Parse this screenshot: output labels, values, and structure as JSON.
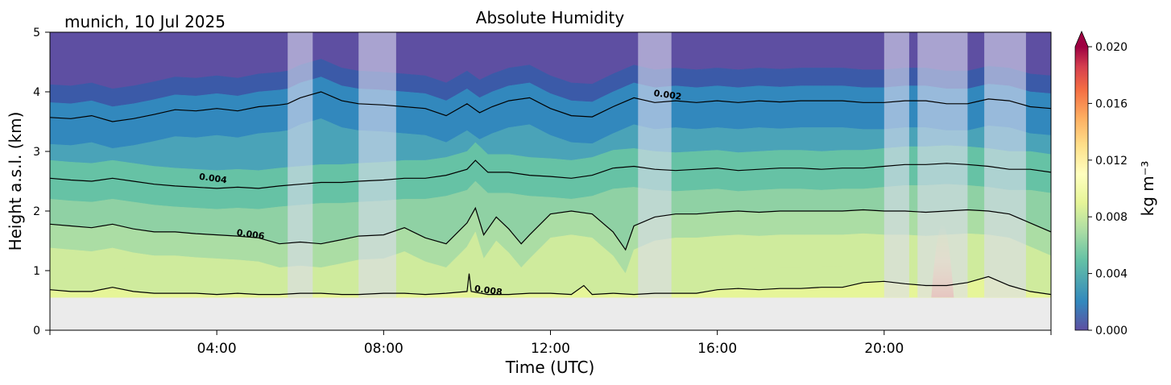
{
  "header": {
    "location_date": "munich, 10 Jul 2025",
    "title": "Absolute Humidity"
  },
  "chart_data": {
    "type": "heatmap",
    "title": "Absolute Humidity",
    "xlabel": "Time (UTC)",
    "ylabel": "Height a.s.l. (km)",
    "xlim": [
      0,
      24
    ],
    "ylim": [
      0,
      5
    ],
    "x_ticks": [
      {
        "value": 4,
        "label": "04:00"
      },
      {
        "value": 8,
        "label": "08:00"
      },
      {
        "value": 12,
        "label": "12:00"
      },
      {
        "value": 16,
        "label": "16:00"
      },
      {
        "value": 20,
        "label": "20:00"
      }
    ],
    "y_ticks": [
      {
        "value": 0,
        "label": "0"
      },
      {
        "value": 1,
        "label": "1"
      },
      {
        "value": 2,
        "label": "2"
      },
      {
        "value": 3,
        "label": "3"
      },
      {
        "value": 4,
        "label": "4"
      },
      {
        "value": 5,
        "label": "5"
      }
    ],
    "data_bottom_km": 0.55,
    "colorbar": {
      "label": "kg m⁻³",
      "range": [
        0,
        0.02
      ],
      "extend": "max",
      "ticks": [
        {
          "value": 0.0,
          "label": "0.000"
        },
        {
          "value": 0.004,
          "label": "0.004"
        },
        {
          "value": 0.008,
          "label": "0.008"
        },
        {
          "value": 0.012,
          "label": "0.012"
        },
        {
          "value": 0.016,
          "label": "0.016"
        },
        {
          "value": 0.02,
          "label": "0.020"
        }
      ],
      "colormap": "Spectral_r"
    },
    "contours": [
      {
        "level": 0.002,
        "label": "0.002",
        "label_at": [
          14.8,
          3.9
        ],
        "points": [
          [
            0,
            3.57
          ],
          [
            0.5,
            3.55
          ],
          [
            1,
            3.6
          ],
          [
            1.5,
            3.5
          ],
          [
            2,
            3.55
          ],
          [
            2.5,
            3.62
          ],
          [
            3,
            3.7
          ],
          [
            3.5,
            3.68
          ],
          [
            4,
            3.72
          ],
          [
            4.5,
            3.68
          ],
          [
            5,
            3.75
          ],
          [
            5.5,
            3.78
          ],
          [
            5.7,
            3.8
          ],
          [
            6,
            3.9
          ],
          [
            6.5,
            4.0
          ],
          [
            7,
            3.85
          ],
          [
            7.4,
            3.8
          ],
          [
            8,
            3.78
          ],
          [
            8.5,
            3.75
          ],
          [
            9,
            3.72
          ],
          [
            9.5,
            3.6
          ],
          [
            10,
            3.8
          ],
          [
            10.3,
            3.65
          ],
          [
            10.6,
            3.75
          ],
          [
            11,
            3.85
          ],
          [
            11.5,
            3.9
          ],
          [
            12,
            3.72
          ],
          [
            12.5,
            3.6
          ],
          [
            13,
            3.58
          ],
          [
            13.5,
            3.75
          ],
          [
            14,
            3.9
          ],
          [
            14.5,
            3.82
          ],
          [
            15,
            3.85
          ],
          [
            15.5,
            3.82
          ],
          [
            16,
            3.85
          ],
          [
            16.5,
            3.82
          ],
          [
            17,
            3.85
          ],
          [
            17.5,
            3.83
          ],
          [
            18,
            3.85
          ],
          [
            18.5,
            3.85
          ],
          [
            19,
            3.85
          ],
          [
            19.5,
            3.82
          ],
          [
            20,
            3.82
          ],
          [
            20.5,
            3.85
          ],
          [
            21,
            3.85
          ],
          [
            21.5,
            3.8
          ],
          [
            22,
            3.8
          ],
          [
            22.5,
            3.88
          ],
          [
            23,
            3.85
          ],
          [
            23.5,
            3.75
          ],
          [
            24,
            3.72
          ]
        ]
      },
      {
        "level": 0.004,
        "label": "0.004",
        "label_at": [
          3.9,
          2.5
        ],
        "points": [
          [
            0,
            2.55
          ],
          [
            0.5,
            2.52
          ],
          [
            1,
            2.5
          ],
          [
            1.5,
            2.55
          ],
          [
            2,
            2.5
          ],
          [
            2.5,
            2.45
          ],
          [
            3,
            2.42
          ],
          [
            3.5,
            2.4
          ],
          [
            4,
            2.38
          ],
          [
            4.5,
            2.4
          ],
          [
            5,
            2.38
          ],
          [
            5.5,
            2.42
          ],
          [
            6,
            2.45
          ],
          [
            6.5,
            2.48
          ],
          [
            7,
            2.48
          ],
          [
            7.4,
            2.5
          ],
          [
            8,
            2.52
          ],
          [
            8.5,
            2.55
          ],
          [
            9,
            2.55
          ],
          [
            9.5,
            2.6
          ],
          [
            10,
            2.7
          ],
          [
            10.2,
            2.85
          ],
          [
            10.5,
            2.65
          ],
          [
            11,
            2.65
          ],
          [
            11.5,
            2.6
          ],
          [
            12,
            2.58
          ],
          [
            12.5,
            2.55
          ],
          [
            13,
            2.6
          ],
          [
            13.5,
            2.72
          ],
          [
            14,
            2.75
          ],
          [
            14.5,
            2.7
          ],
          [
            15,
            2.68
          ],
          [
            15.5,
            2.7
          ],
          [
            16,
            2.72
          ],
          [
            16.5,
            2.68
          ],
          [
            17,
            2.7
          ],
          [
            17.5,
            2.72
          ],
          [
            18,
            2.72
          ],
          [
            18.5,
            2.7
          ],
          [
            19,
            2.72
          ],
          [
            19.5,
            2.72
          ],
          [
            20,
            2.75
          ],
          [
            20.5,
            2.78
          ],
          [
            21,
            2.78
          ],
          [
            21.5,
            2.8
          ],
          [
            22,
            2.78
          ],
          [
            22.5,
            2.75
          ],
          [
            23,
            2.7
          ],
          [
            23.5,
            2.7
          ],
          [
            24,
            2.65
          ]
        ]
      },
      {
        "level": 0.006,
        "label": "0.006",
        "label_at": [
          4.8,
          1.56
        ],
        "points": [
          [
            0,
            1.78
          ],
          [
            0.5,
            1.75
          ],
          [
            1,
            1.72
          ],
          [
            1.5,
            1.78
          ],
          [
            2,
            1.7
          ],
          [
            2.5,
            1.65
          ],
          [
            3,
            1.65
          ],
          [
            3.5,
            1.62
          ],
          [
            4,
            1.6
          ],
          [
            4.5,
            1.58
          ],
          [
            5,
            1.55
          ],
          [
            5.5,
            1.45
          ],
          [
            6,
            1.48
          ],
          [
            6.5,
            1.45
          ],
          [
            7,
            1.52
          ],
          [
            7.4,
            1.58
          ],
          [
            8,
            1.6
          ],
          [
            8.5,
            1.72
          ],
          [
            9,
            1.55
          ],
          [
            9.5,
            1.45
          ],
          [
            10,
            1.8
          ],
          [
            10.2,
            2.05
          ],
          [
            10.4,
            1.6
          ],
          [
            10.7,
            1.9
          ],
          [
            11,
            1.7
          ],
          [
            11.3,
            1.45
          ],
          [
            11.5,
            1.6
          ],
          [
            12,
            1.95
          ],
          [
            12.5,
            2.0
          ],
          [
            13,
            1.95
          ],
          [
            13.5,
            1.65
          ],
          [
            13.8,
            1.35
          ],
          [
            14,
            1.75
          ],
          [
            14.5,
            1.9
          ],
          [
            15,
            1.95
          ],
          [
            15.5,
            1.95
          ],
          [
            16,
            1.98
          ],
          [
            16.5,
            2.0
          ],
          [
            17,
            1.98
          ],
          [
            17.5,
            2.0
          ],
          [
            18,
            2.0
          ],
          [
            18.5,
            2.0
          ],
          [
            19,
            2.0
          ],
          [
            19.5,
            2.02
          ],
          [
            20,
            2.0
          ],
          [
            20.5,
            2.0
          ],
          [
            21,
            1.98
          ],
          [
            21.5,
            2.0
          ],
          [
            22,
            2.02
          ],
          [
            22.5,
            2.0
          ],
          [
            23,
            1.95
          ],
          [
            23.5,
            1.8
          ],
          [
            24,
            1.65
          ]
        ]
      },
      {
        "level": 0.008,
        "label": "0.008",
        "label_at": [
          10.5,
          0.62
        ],
        "points": [
          [
            0,
            0.68
          ],
          [
            0.5,
            0.65
          ],
          [
            1,
            0.65
          ],
          [
            1.5,
            0.72
          ],
          [
            2,
            0.65
          ],
          [
            2.5,
            0.62
          ],
          [
            3,
            0.62
          ],
          [
            3.5,
            0.62
          ],
          [
            4,
            0.6
          ],
          [
            4.5,
            0.62
          ],
          [
            5,
            0.6
          ],
          [
            5.5,
            0.6
          ],
          [
            6,
            0.62
          ],
          [
            6.5,
            0.62
          ],
          [
            7,
            0.6
          ],
          [
            7.4,
            0.6
          ],
          [
            8,
            0.62
          ],
          [
            8.5,
            0.62
          ],
          [
            9,
            0.6
          ],
          [
            9.5,
            0.62
          ],
          [
            10,
            0.65
          ],
          [
            10.05,
            0.95
          ],
          [
            10.1,
            0.65
          ],
          [
            10.5,
            0.6
          ],
          [
            11,
            0.6
          ],
          [
            11.5,
            0.62
          ],
          [
            12,
            0.62
          ],
          [
            12.5,
            0.6
          ],
          [
            12.8,
            0.75
          ],
          [
            13,
            0.6
          ],
          [
            13.5,
            0.62
          ],
          [
            14,
            0.6
          ],
          [
            14.5,
            0.62
          ],
          [
            15,
            0.62
          ],
          [
            15.5,
            0.62
          ],
          [
            16,
            0.68
          ],
          [
            16.5,
            0.7
          ],
          [
            17,
            0.68
          ],
          [
            17.5,
            0.7
          ],
          [
            18,
            0.7
          ],
          [
            18.5,
            0.72
          ],
          [
            19,
            0.72
          ],
          [
            19.5,
            0.8
          ],
          [
            20,
            0.82
          ],
          [
            20.5,
            0.78
          ],
          [
            21,
            0.75
          ],
          [
            21.5,
            0.75
          ],
          [
            22,
            0.8
          ],
          [
            22.5,
            0.9
          ],
          [
            23,
            0.75
          ],
          [
            23.5,
            0.65
          ],
          [
            24,
            0.6
          ]
        ]
      }
    ],
    "masked_intervals_utc": [
      [
        5.7,
        6.3
      ],
      [
        7.4,
        8.3
      ],
      [
        14.1,
        14.9
      ],
      [
        20.0,
        20.6
      ],
      [
        20.8,
        22.0
      ],
      [
        22.4,
        23.4
      ]
    ],
    "colors": {
      "axes_face": "#ebebeb",
      "mask": "#dcdcee",
      "level_0": "#5e4fa2",
      "level_1": "#3b5aa8",
      "level_2": "#3288bd",
      "level_3": "#4aa3b8",
      "level_4": "#66c2a5",
      "level_5": "#8fd1a4",
      "level_6": "#abdda4",
      "level_7": "#cfeb9d",
      "level_8": "#e6f598",
      "level_9": "#fee08b",
      "level_10": "#fdae61",
      "level_11": "#d53e4f",
      "level_12": "#9e0142"
    }
  }
}
